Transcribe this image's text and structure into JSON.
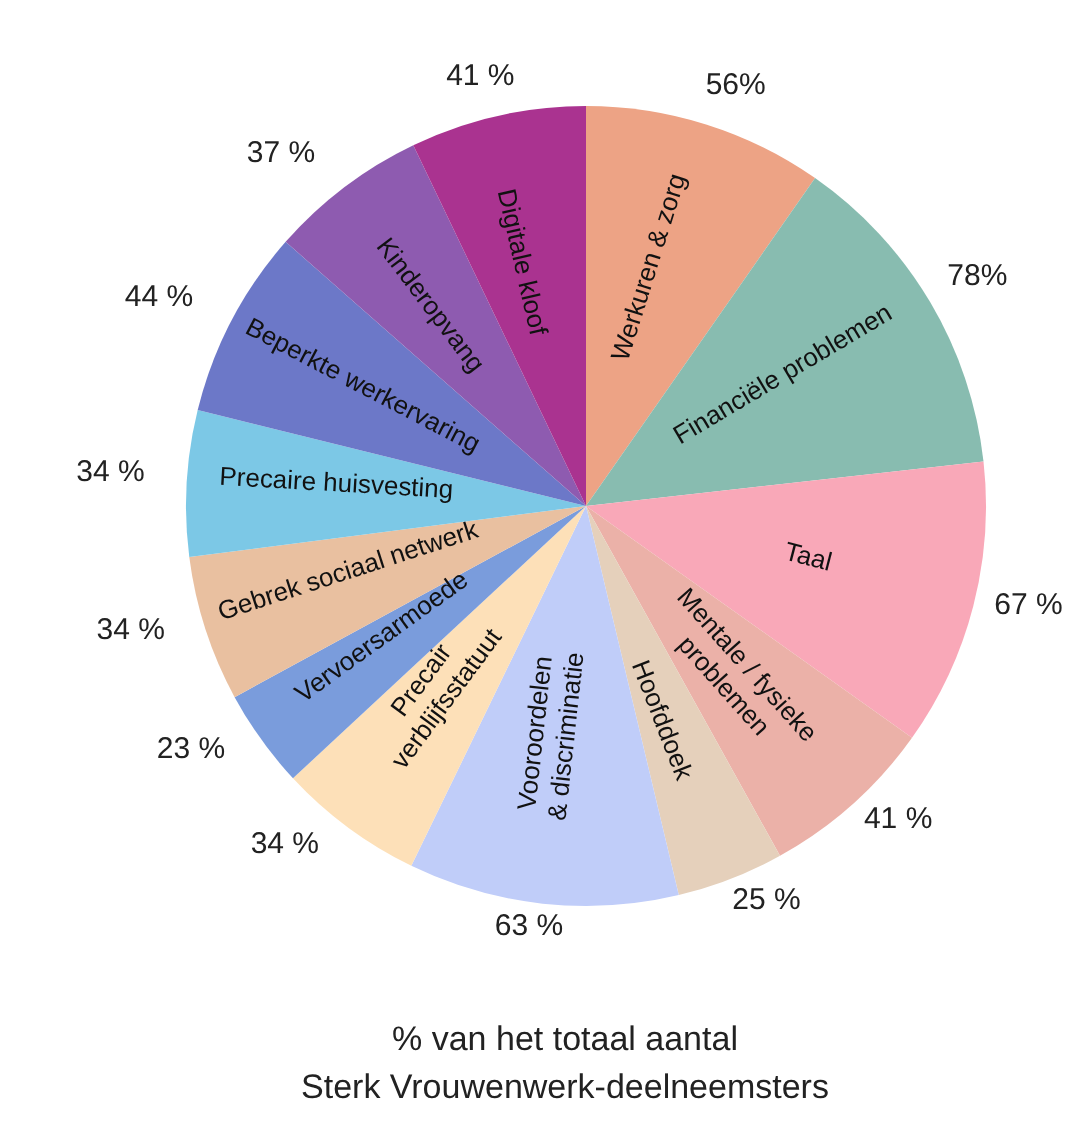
{
  "chart_data": {
    "type": "pie",
    "categories": [
      "Werkuren & zorg",
      "Financiële problemen",
      "Taal",
      "Mentale / fysieke\nproblemen",
      "Hoofddoek",
      "Vooroordelen\n& discriminatie",
      "Precair\nverblijfsstatuut",
      "Vervoersarmoede",
      "Gebrek sociaal netwerk",
      "Precaire huisvesting",
      "Beperkte werkervaring",
      "Kinderopvang",
      "Digitale kloof"
    ],
    "values": [
      56,
      78,
      67,
      41,
      25,
      63,
      34,
      23,
      34,
      34,
      44,
      37,
      41
    ],
    "value_labels": [
      "56%",
      "78%",
      "67 %",
      "41 %",
      "25 %",
      "63 %",
      "34 %",
      "23 %",
      "34 %",
      "34 %",
      "44 %",
      "37 %",
      "41 %"
    ],
    "colors": [
      "#eda385",
      "#88bcb0",
      "#f9a8b8",
      "#ebb1a8",
      "#e5d0bb",
      "#c0cdf9",
      "#fde0b8",
      "#7a9cdc",
      "#e9c0a0",
      "#7cc8e6",
      "#6c78c8",
      "#8e5bb0",
      "#aa3390"
    ],
    "annotations": [
      "% van het totaal aantal",
      "Sterk Vrouwenwerk-deelneemsters"
    ],
    "legend": false
  }
}
